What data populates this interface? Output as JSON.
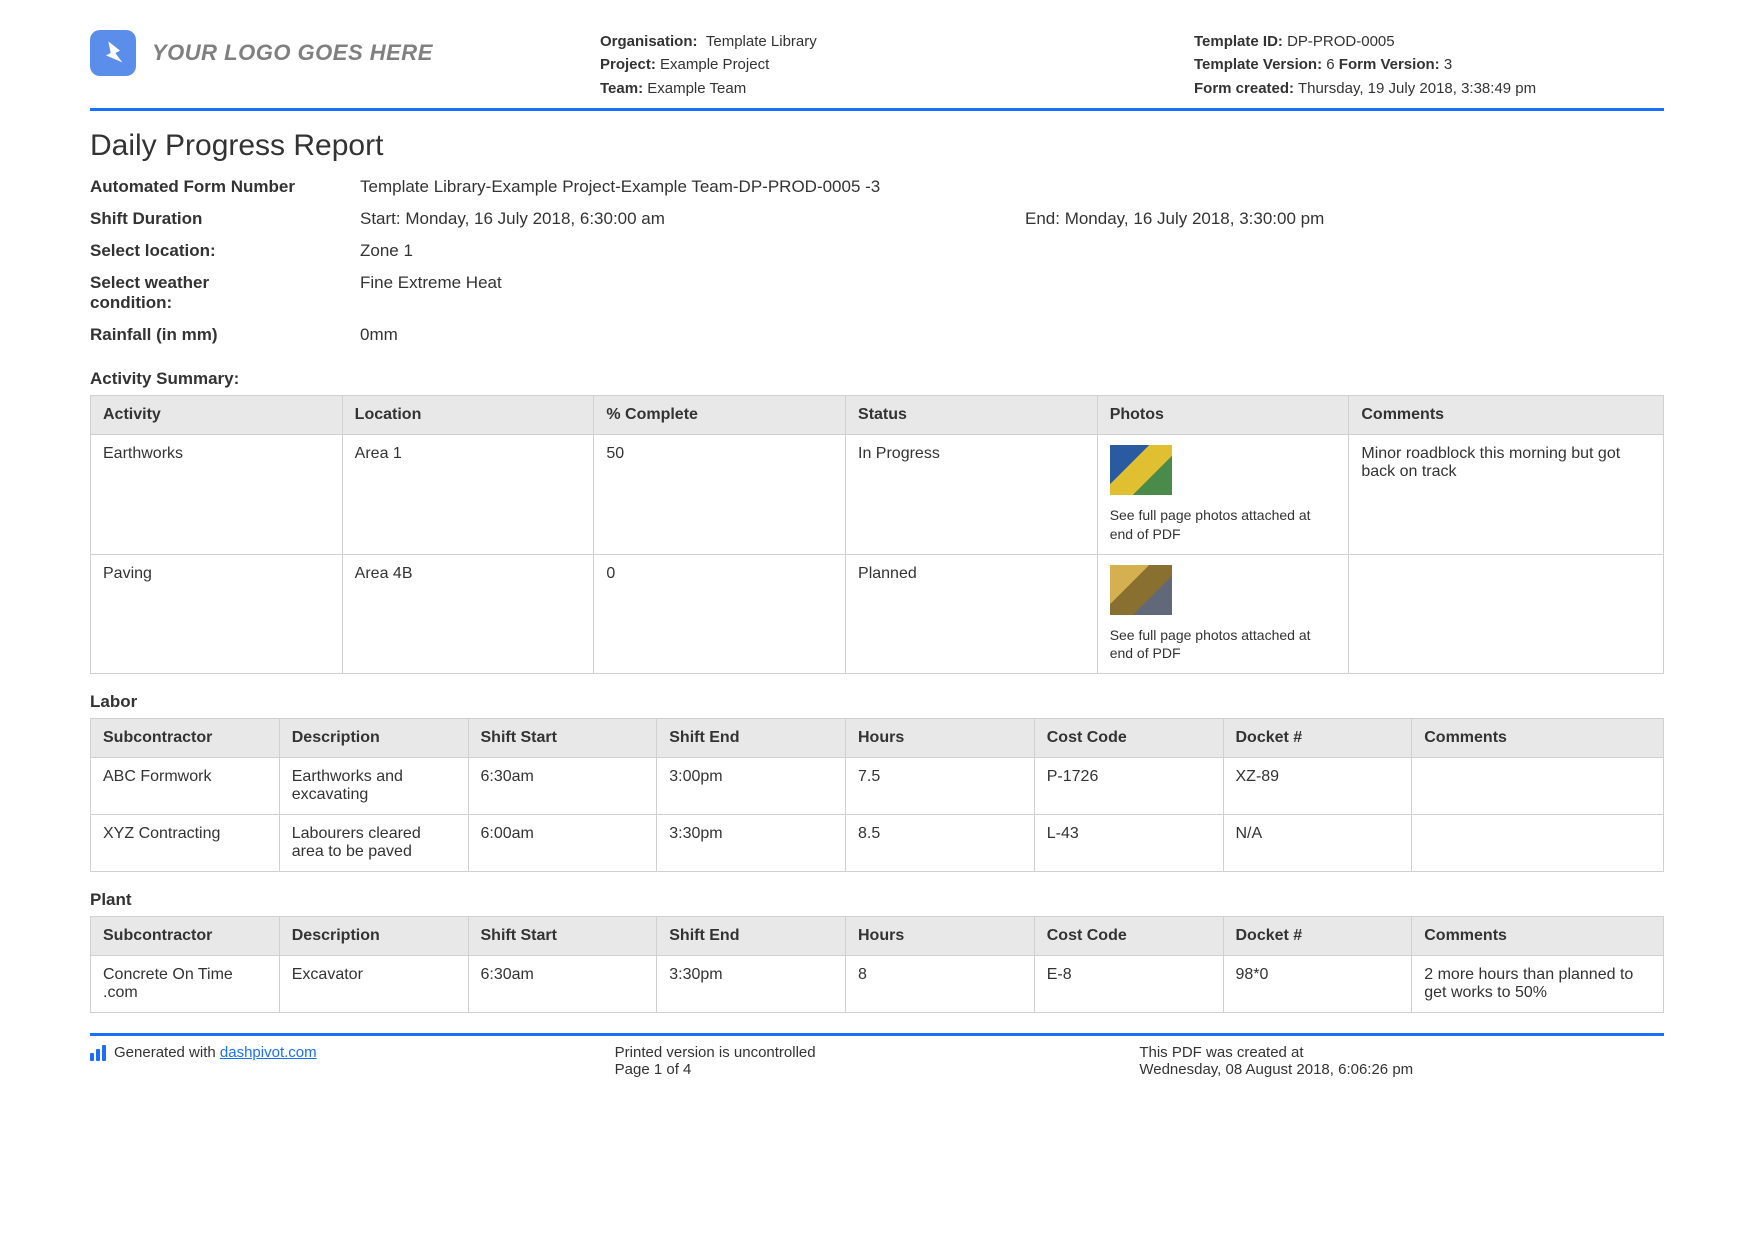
{
  "colors": {
    "accent": "#1a6eff",
    "logo_bg": "#5b8deb",
    "header_bg": "#e8e8e8",
    "border": "#d0d0d0",
    "text": "#333333",
    "logo_text": "#808080"
  },
  "header": {
    "logo_text": "YOUR LOGO GOES HERE",
    "org_label": "Organisation:",
    "org_value": "Template Library",
    "project_label": "Project:",
    "project_value": "Example Project",
    "team_label": "Team:",
    "team_value": "Example Team",
    "template_id_label": "Template ID:",
    "template_id_value": "DP-PROD-0005",
    "template_ver_label": "Template Version:",
    "template_ver_value": "6",
    "form_ver_label": "Form Version:",
    "form_ver_value": "3",
    "form_created_label": "Form created:",
    "form_created_value": "Thursday, 19 July 2018, 3:38:49 pm"
  },
  "title": "Daily Progress Report",
  "info": {
    "afn_label": "Automated Form Number",
    "afn_value": "Template Library-Example Project-Example Team-DP-PROD-0005   -3",
    "shift_label": "Shift Duration",
    "shift_start": "Start: Monday, 16 July 2018, 6:30:00 am",
    "shift_end": "End: Monday, 16 July 2018, 3:30:00 pm",
    "loc_label": "Select location:",
    "loc_value": "Zone 1",
    "weather_label": "Select weather condition:",
    "weather_value": "Fine   Extreme Heat",
    "rain_label": "Rainfall (in mm)",
    "rain_value": "0mm"
  },
  "activity": {
    "heading": "Activity Summary:",
    "columns": [
      "Activity",
      "Location",
      "% Complete",
      "Status",
      "Photos",
      "Comments"
    ],
    "col_widths": [
      "16%",
      "16%",
      "16%",
      "16%",
      "16%",
      "20%"
    ],
    "photo_caption": "See full page photos attached at end of PDF",
    "rows": [
      {
        "activity": "Earthworks",
        "location": "Area 1",
        "pct": "50",
        "status": "In Progress",
        "thumb_colors": [
          "#2a5aa0",
          "#e0c030",
          "#4a8a4a"
        ],
        "comments": "Minor roadblock this morning but got back on track"
      },
      {
        "activity": "Paving",
        "location": "Area 4B",
        "pct": "0",
        "status": "Planned",
        "thumb_colors": [
          "#d4b050",
          "#8a7030",
          "#60687a"
        ],
        "comments": ""
      }
    ]
  },
  "labor": {
    "heading": "Labor",
    "columns": [
      "Subcontractor",
      "Description",
      "Shift Start",
      "Shift End",
      "Hours",
      "Cost Code",
      "Docket #",
      "Comments"
    ],
    "col_widths": [
      "12%",
      "12%",
      "12%",
      "12%",
      "12%",
      "12%",
      "12%",
      "16%"
    ],
    "rows": [
      [
        "ABC Formwork",
        "Earthworks and excavating",
        "6:30am",
        "3:00pm",
        "7.5",
        "P-1726",
        "XZ-89",
        ""
      ],
      [
        "XYZ Contracting",
        "Labourers cleared area to be paved",
        "6:00am",
        "3:30pm",
        "8.5",
        "L-43",
        "N/A",
        ""
      ]
    ]
  },
  "plant": {
    "heading": "Plant",
    "columns": [
      "Subcontractor",
      "Description",
      "Shift Start",
      "Shift End",
      "Hours",
      "Cost Code",
      "Docket #",
      "Comments"
    ],
    "col_widths": [
      "12%",
      "12%",
      "12%",
      "12%",
      "12%",
      "12%",
      "12%",
      "16%"
    ],
    "rows": [
      [
        "Concrete On Time .com",
        "Excavator",
        "6:30am",
        "3:30pm",
        "8",
        "E-8",
        "98*0",
        "2 more hours than planned to get works to 50%"
      ]
    ]
  },
  "footer": {
    "gen_prefix": "Generated with ",
    "gen_link": "dashpivot.com",
    "uncontrolled": "Printed version is uncontrolled",
    "page": "Page 1 of 4",
    "created_label": "This PDF was created at",
    "created_value": "Wednesday, 08 August 2018, 6:06:26 pm"
  }
}
